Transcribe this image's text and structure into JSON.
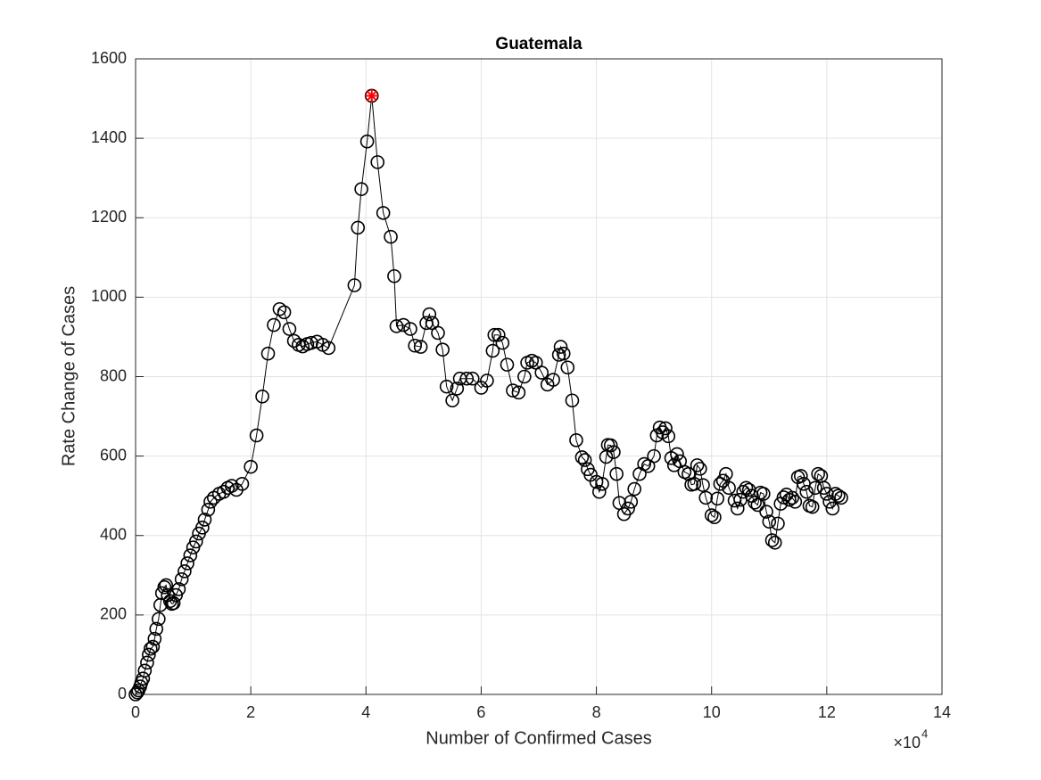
{
  "chart_data": {
    "type": "line",
    "title": "Guatemala",
    "x_label": "Number of Confirmed Cases",
    "y_label": "Rate Change of Cases",
    "x_multiplier": {
      "base": "×10",
      "exponent": "4"
    },
    "color": "#000000",
    "marker": "o",
    "grid": true,
    "xlim": [
      0,
      140000
    ],
    "xticks": [
      0,
      {
        "value": 20000,
        "label": "2"
      },
      {
        "value": 40000,
        "label": "4"
      },
      {
        "value": 60000,
        "label": "6"
      },
      {
        "value": 80000,
        "label": "8"
      },
      {
        "value": 100000,
        "label": "10"
      },
      {
        "value": 120000,
        "label": "12"
      },
      {
        "value": 140000,
        "label": "14"
      }
    ],
    "ylim": [
      0,
      1600
    ],
    "yticks": [
      0,
      200,
      400,
      600,
      800,
      1000,
      1200,
      1400,
      1600
    ],
    "x": [
      0,
      300,
      500,
      800,
      1000,
      1300,
      1600,
      2000,
      2300,
      2600,
      3000,
      3300,
      3600,
      4000,
      4300,
      4600,
      5000,
      5300,
      5600,
      6000,
      6300,
      6600,
      7000,
      7500,
      8000,
      8500,
      9000,
      9500,
      10000,
      10500,
      11000,
      11600,
      12000,
      12600,
      13000,
      13600,
      14500,
      15300,
      16000,
      16700,
      17500,
      18500,
      20000,
      21000,
      22000,
      23000,
      24000,
      25000,
      25800,
      26700,
      27500,
      28300,
      29000,
      29800,
      30500,
      31500,
      32500,
      33500,
      38000,
      38600,
      39200,
      40200,
      41000,
      42000,
      43000,
      44300,
      44900,
      45300,
      46500,
      47700,
      48500,
      49500,
      50500,
      51000,
      51500,
      52500,
      53300,
      54000,
      55000,
      55800,
      56300,
      57500,
      58500,
      60000,
      61000,
      62000,
      62300,
      63000,
      63700,
      64500,
      65500,
      66500,
      67500,
      68000,
      68800,
      69500,
      70500,
      71500,
      72500,
      73500,
      73800,
      74300,
      75000,
      75800,
      76500,
      77500,
      78000,
      78500,
      79000,
      80000,
      80500,
      81000,
      81700,
      82000,
      82500,
      83000,
      83500,
      84000,
      84800,
      85500,
      86000,
      86600,
      87500,
      88300,
      89000,
      90000,
      90500,
      91000,
      91500,
      92000,
      92500,
      93000,
      93500,
      94000,
      94500,
      95300,
      96000,
      96500,
      97000,
      97500,
      98000,
      98500,
      99000,
      100000,
      100500,
      101000,
      101500,
      102000,
      102500,
      103000,
      104000,
      104500,
      105000,
      105500,
      106000,
      106500,
      107000,
      107500,
      108000,
      108500,
      109000,
      109500,
      110000,
      110500,
      111000,
      111500,
      112000,
      112500,
      113000,
      113500,
      114000,
      114500,
      115000,
      115500,
      116000,
      116500,
      117000,
      117500,
      118000,
      118500,
      119000,
      119500,
      120000,
      120500,
      121000,
      121500,
      122000,
      122500
    ],
    "values": [
      0,
      5,
      10,
      20,
      30,
      40,
      60,
      80,
      100,
      115,
      120,
      140,
      165,
      190,
      225,
      255,
      270,
      275,
      250,
      235,
      228,
      230,
      250,
      265,
      290,
      310,
      330,
      350,
      370,
      385,
      405,
      420,
      440,
      465,
      485,
      495,
      505,
      510,
      520,
      525,
      515,
      530,
      573,
      652,
      750,
      858,
      930,
      970,
      962,
      920,
      890,
      880,
      876,
      882,
      885,
      888,
      880,
      872,
      1030,
      1175,
      1272,
      1392,
      1507,
      1340,
      1212,
      1152,
      1053,
      927,
      930,
      920,
      878,
      875,
      935,
      957,
      935,
      910,
      868,
      775,
      740,
      770,
      795,
      795,
      795,
      772,
      790,
      865,
      905,
      905,
      885,
      830,
      765,
      760,
      800,
      835,
      840,
      835,
      810,
      780,
      792,
      855,
      875,
      858,
      823,
      740,
      640,
      597,
      590,
      567,
      553,
      535,
      510,
      530,
      598,
      628,
      627,
      610,
      555,
      482,
      454,
      468,
      485,
      517,
      555,
      580,
      575,
      600,
      652,
      672,
      660,
      670,
      650,
      595,
      577,
      605,
      587,
      560,
      555,
      528,
      530,
      577,
      568,
      527,
      495,
      451,
      446,
      493,
      530,
      538,
      555,
      520,
      488,
      468,
      490,
      510,
      520,
      515,
      500,
      483,
      477,
      508,
      505,
      460,
      435,
      388,
      382,
      430,
      480,
      496,
      503,
      490,
      495,
      485,
      547,
      550,
      530,
      510,
      475,
      472,
      520,
      555,
      550,
      520,
      505,
      485,
      468,
      505,
      500,
      495
    ],
    "highlight": {
      "x": 41000,
      "y": 1507,
      "color": "#ff0000"
    }
  }
}
